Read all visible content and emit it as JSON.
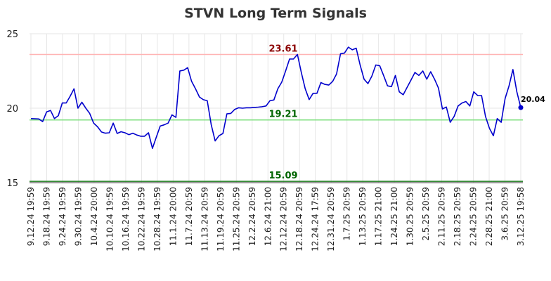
{
  "chart_data": {
    "type": "line",
    "title": "STVN Long Term Signals",
    "xlabel": "",
    "ylabel": "",
    "ylim": [
      15,
      25
    ],
    "y_ticks": [
      15,
      20,
      25
    ],
    "grid": true,
    "x_tick_labels": [
      "9.12.24 19:59",
      "9.18.24 19:59",
      "9.24.24 19:59",
      "9.30.24 19:59",
      "10.4.24 20:00",
      "10.10.24 19:59",
      "10.16.24 19:59",
      "10.22.24 19:59",
      "10.28.24 19:59",
      "11.1.24 20:00",
      "11.7.24 20:59",
      "11.13.24 20:59",
      "11.19.24 20:59",
      "11.25.24 20:59",
      "12.2.24 20:59",
      "12.6.24 21:00",
      "12.12.24 20:59",
      "12.18.24 20:59",
      "12.24.24 17:59",
      "12.31.24 20:59",
      "1.7.25 20:59",
      "1.13.25 20:59",
      "1.17.25 21:00",
      "1.24.25 21:00",
      "1.30.25 20:59",
      "2.5.25 20:59",
      "2.11.25 20:59",
      "2.18.25 20:59",
      "2.24.25 20:59",
      "2.28.25 21:00",
      "3.6.25 20:59",
      "3.12.25 19:58"
    ],
    "series": [
      {
        "color": "#0000cc",
        "values": [
          19.3,
          19.29,
          19.28,
          19.1,
          19.75,
          19.85,
          19.3,
          19.5,
          20.35,
          20.35,
          20.8,
          21.3,
          20.0,
          20.4,
          20.0,
          19.65,
          19.0,
          18.75,
          18.4,
          18.32,
          18.35,
          19.0,
          18.3,
          18.42,
          18.35,
          18.22,
          18.32,
          18.2,
          18.12,
          18.12,
          18.35,
          17.3,
          18.05,
          18.8,
          18.88,
          19.0,
          19.55,
          19.38,
          22.5,
          22.55,
          22.72,
          21.8,
          21.3,
          20.75,
          20.57,
          20.5,
          18.9,
          17.8,
          18.15,
          18.3,
          19.62,
          19.65,
          19.92,
          20.03,
          20.0,
          20.03,
          20.03,
          20.05,
          20.07,
          20.1,
          20.15,
          20.5,
          20.55,
          21.3,
          21.75,
          22.5,
          23.3,
          23.3,
          23.61,
          22.4,
          21.3,
          20.58,
          21.0,
          21.0,
          21.72,
          21.6,
          21.55,
          21.8,
          22.3,
          23.65,
          23.7,
          24.1,
          23.92,
          24.03,
          22.9,
          21.95,
          21.65,
          22.15,
          22.9,
          22.85,
          22.2,
          21.5,
          21.45,
          22.2,
          21.1,
          20.9,
          21.4,
          21.9,
          22.4,
          22.2,
          22.5,
          21.95,
          22.45,
          21.95,
          21.35,
          19.95,
          20.08,
          19.05,
          19.45,
          20.15,
          20.35,
          20.45,
          20.15,
          21.1,
          20.85,
          20.85,
          19.45,
          18.65,
          18.15,
          19.3,
          19.05,
          20.65,
          21.5,
          22.6,
          21.1,
          20.04
        ]
      }
    ],
    "levels": [
      {
        "value": 23.61,
        "label": "23.61",
        "line_color": "#ffb3b3",
        "label_color": "#8b0000"
      },
      {
        "value": 19.21,
        "label": "19.21",
        "line_color": "#80e080",
        "label_color": "#006400"
      },
      {
        "value": 15.09,
        "label": "15.09",
        "line_color": "#1a7a1a",
        "label_color": "#006400"
      }
    ],
    "last_value": {
      "value": 20.04,
      "label": "20.04",
      "color": "#0000cc"
    }
  }
}
